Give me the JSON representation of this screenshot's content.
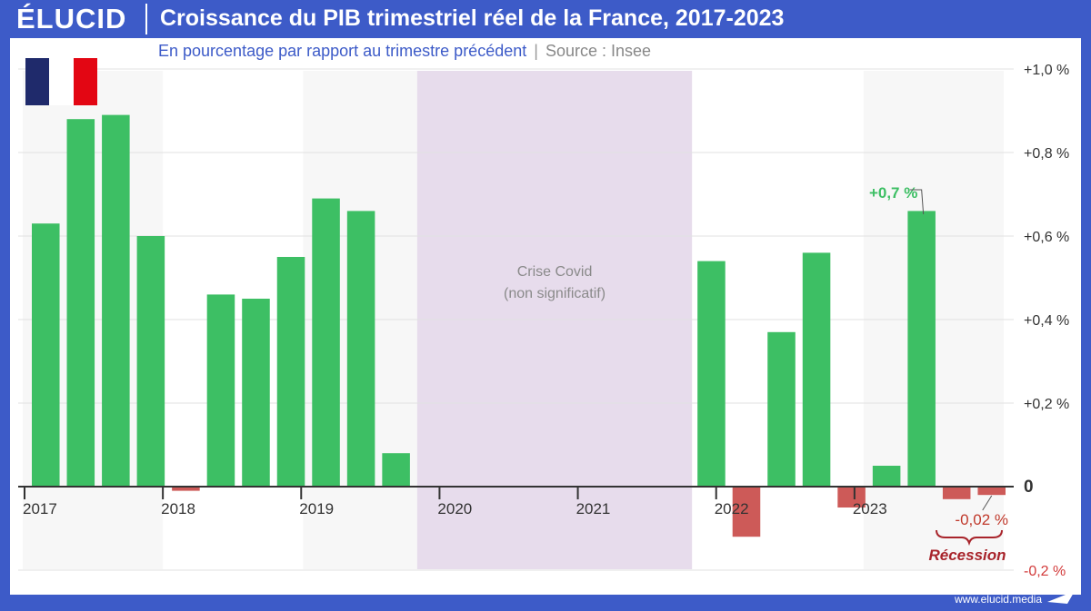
{
  "header": {
    "logo": "ÉLUCID",
    "title": "Croissance du PIB trimestriel réel de la France, 2017-2023"
  },
  "subtitle": {
    "main": "En pourcentage par rapport au trimestre précédent",
    "separator": "|",
    "source": "Source : Insee"
  },
  "flag_colors": [
    "#1f2a6b",
    "#ffffff",
    "#e30613"
  ],
  "footer": {
    "url": "www.elucid.media"
  },
  "colors": {
    "positive": "#3dbf64",
    "negative": "#cd5a58",
    "covid_band": "#e7dcec",
    "alt_band": "#f7f7f7",
    "positive_label": "#3dbf64",
    "negative_label": "#c0392b"
  },
  "chart_data": {
    "type": "bar",
    "ylim": [
      -0.2,
      1.0
    ],
    "y_ticks": [
      {
        "value": 1.0,
        "label": "+1,0 %"
      },
      {
        "value": 0.8,
        "label": "+0,8 %"
      },
      {
        "value": 0.6,
        "label": "+0,6 %"
      },
      {
        "value": 0.4,
        "label": "+0,4 %"
      },
      {
        "value": 0.2,
        "label": "+0,2 %"
      },
      {
        "value": 0.0,
        "label": "0"
      },
      {
        "value": -0.2,
        "label": "-0,2 %"
      }
    ],
    "years": [
      "2017",
      "2018",
      "2019",
      "2020",
      "2021",
      "2022",
      "2023"
    ],
    "quarters": [
      {
        "year": "2017",
        "q": 1,
        "value": 0.63
      },
      {
        "year": "2017",
        "q": 2,
        "value": 0.88
      },
      {
        "year": "2017",
        "q": 3,
        "value": 0.89
      },
      {
        "year": "2017",
        "q": 4,
        "value": 0.6
      },
      {
        "year": "2018",
        "q": 1,
        "value": -0.01
      },
      {
        "year": "2018",
        "q": 2,
        "value": 0.46
      },
      {
        "year": "2018",
        "q": 3,
        "value": 0.45
      },
      {
        "year": "2018",
        "q": 4,
        "value": 0.55
      },
      {
        "year": "2019",
        "q": 1,
        "value": 0.69
      },
      {
        "year": "2019",
        "q": 2,
        "value": 0.66
      },
      {
        "year": "2019",
        "q": 3,
        "value": 0.08
      },
      {
        "year": "2019",
        "q": 4,
        "value": null
      },
      {
        "year": "2020",
        "q": 1,
        "value": null
      },
      {
        "year": "2020",
        "q": 2,
        "value": null
      },
      {
        "year": "2020",
        "q": 3,
        "value": null
      },
      {
        "year": "2020",
        "q": 4,
        "value": null
      },
      {
        "year": "2021",
        "q": 1,
        "value": null
      },
      {
        "year": "2021",
        "q": 2,
        "value": null
      },
      {
        "year": "2021",
        "q": 3,
        "value": null
      },
      {
        "year": "2021",
        "q": 4,
        "value": 0.54
      },
      {
        "year": "2022",
        "q": 1,
        "value": -0.12
      },
      {
        "year": "2022",
        "q": 2,
        "value": 0.37
      },
      {
        "year": "2022",
        "q": 3,
        "value": 0.56
      },
      {
        "year": "2022",
        "q": 4,
        "value": -0.05
      },
      {
        "year": "2023",
        "q": 1,
        "value": 0.05
      },
      {
        "year": "2023",
        "q": 2,
        "value": 0.66
      },
      {
        "year": "2023",
        "q": 3,
        "value": -0.03
      },
      {
        "year": "2023",
        "q": 4,
        "value": -0.02
      }
    ],
    "covid_band": {
      "from_index": 11,
      "to_index": 18,
      "label_line1": "Crise Covid",
      "label_line2": "(non significatif)"
    },
    "annotations": {
      "max_label": "+0,7 %",
      "min_label": "-0,02 %",
      "recession_label": "Récession"
    }
  }
}
